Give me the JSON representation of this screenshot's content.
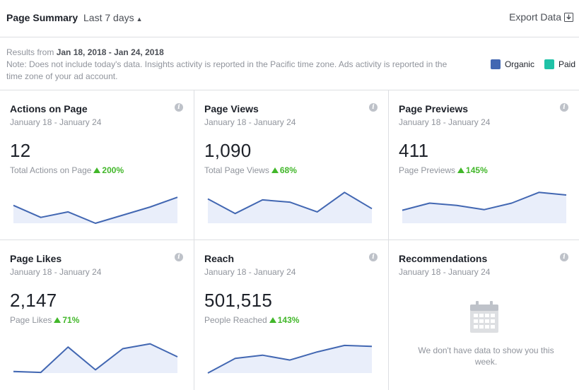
{
  "header": {
    "title": "Page Summary",
    "range": "Last 7 days",
    "export_label": "Export Data"
  },
  "notes": {
    "results_prefix": "Results from ",
    "dates": "Jan 18, 2018 - Jan 24, 2018",
    "note": "Note: Does not include today's data. Insights activity is reported in the Pacific time zone. Ads activity is reported in the time zone of your ad account."
  },
  "legend": [
    {
      "label": "Organic",
      "color": "#4267b2"
    },
    {
      "label": "Paid",
      "color": "#1fc2a7"
    }
  ],
  "cards": [
    {
      "title": "Actions on Page",
      "date_range": "January 18 - January 24",
      "value": "12",
      "metric_label": "Total Actions on Page",
      "change": "200%",
      "trend": [
        0.55,
        0.18,
        0.35,
        0.0,
        0.25,
        0.5,
        0.8
      ]
    },
    {
      "title": "Page Views",
      "date_range": "January 18 - January 24",
      "value": "1,090",
      "metric_label": "Total Page Views",
      "change": "68%",
      "trend": [
        0.75,
        0.3,
        0.72,
        0.65,
        0.35,
        0.95,
        0.45
      ]
    },
    {
      "title": "Page Previews",
      "date_range": "January 18 - January 24",
      "value": "411",
      "metric_label": "Page Previews",
      "change": "145%",
      "trend": [
        0.4,
        0.62,
        0.55,
        0.42,
        0.62,
        0.95,
        0.87
      ]
    },
    {
      "title": "Page Likes",
      "date_range": "January 18 - January 24",
      "value": "2,147",
      "metric_label": "Page Likes",
      "change": "71%",
      "trend": [
        0.05,
        0.02,
        0.8,
        0.1,
        0.75,
        0.9,
        0.5
      ]
    },
    {
      "title": "Reach",
      "date_range": "January 18 - January 24",
      "value": "501,515",
      "metric_label": "People Reached",
      "change": "143%",
      "trend": [
        0.0,
        0.45,
        0.55,
        0.4,
        0.65,
        0.85,
        0.82
      ]
    }
  ],
  "recommendations": {
    "title": "Recommendations",
    "date_range": "January 18 - January 24",
    "empty_message": "We don't have data to show you this week."
  }
}
